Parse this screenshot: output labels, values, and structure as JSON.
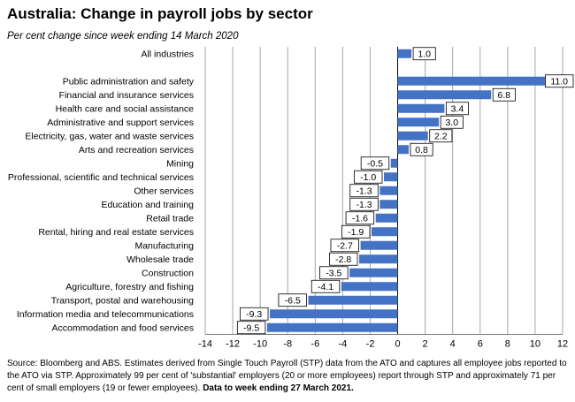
{
  "header": {
    "title": "Australia:  Change in payroll jobs by sector",
    "subtitle": "Per cent change since week ending 14 March 2020"
  },
  "chart_data": {
    "type": "bar",
    "orientation": "horizontal",
    "title": "Australia:  Change in payroll jobs by sector",
    "subtitle": "Per cent change since week ending 14 March 2020",
    "xlim": [
      -14,
      12
    ],
    "x_ticks": [
      "-14",
      "-12",
      "-10",
      "-8",
      "-6",
      "-4",
      "-2",
      "0",
      "2",
      "4",
      "6",
      "8",
      "10",
      "12"
    ],
    "grid": "vertical",
    "bar_color": "#4472c4",
    "categories": [
      "All industries",
      "",
      "Public administration and safety",
      "Financial and insurance services",
      "Health care and social assistance",
      "Administrative and support services",
      "Electricity, gas, water and waste services",
      "Arts and recreation services",
      "Mining",
      "Professional, scientific and technical services",
      "Other services",
      "Education and training",
      "Retail trade",
      "Rental, hiring and real estate services",
      "Manufacturing",
      "Wholesale trade",
      "Construction",
      "Agriculture, forestry and fishing",
      "Transport, postal and warehousing",
      "Information media and telecommunications",
      "Accommodation and food services"
    ],
    "values": [
      1.0,
      null,
      11.0,
      6.8,
      3.4,
      3.0,
      2.2,
      0.8,
      -0.5,
      -1.0,
      -1.3,
      -1.3,
      -1.6,
      -1.9,
      -2.7,
      -2.8,
      -3.5,
      -4.1,
      -6.5,
      -9.3,
      -9.5
    ],
    "value_labels": [
      "1.0",
      "",
      "11.0",
      "6.8",
      "3.4",
      "3.0",
      "2.2",
      "0.8",
      "-0.5",
      "-1.0",
      "-1.3",
      "-1.3",
      "-1.6",
      "-1.9",
      "-2.7",
      "-2.8",
      "-3.5",
      "-4.1",
      "-6.5",
      "-9.3",
      "-9.5"
    ]
  },
  "footer": {
    "source_text": "Source: Bloomberg and ABS.  Estimates derived from Single Touch Payroll (STP) data from the ATO and captures all employee jobs reported to the ATO via STP.  Approximately 99 per cent of 'substantial' employers (20 or more employees) report through STP and approximately 71 per cent of small employers (19 or fewer employees).",
    "source_bold": "Data to week ending  27 March 2021."
  }
}
